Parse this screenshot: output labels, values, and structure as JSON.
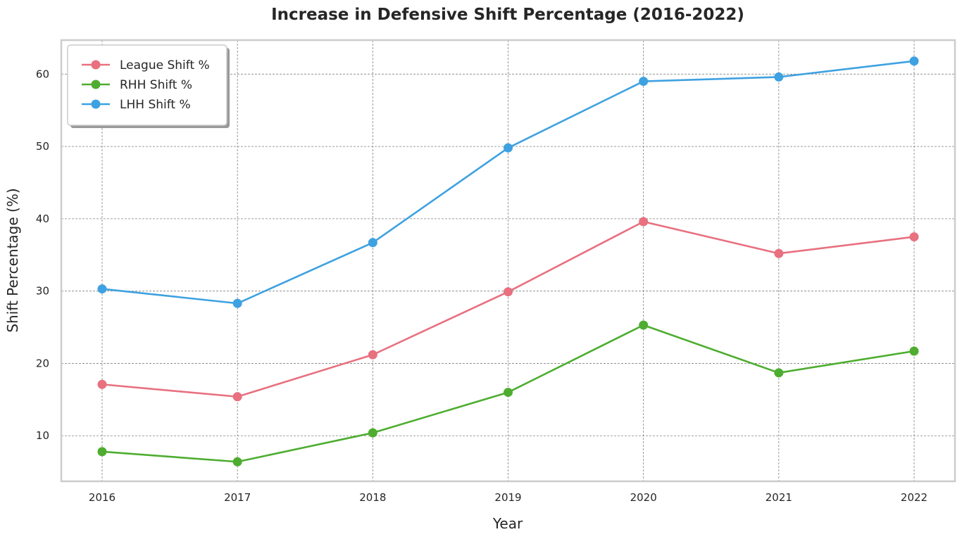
{
  "chart_data": {
    "type": "line",
    "title": "Increase in Defensive Shift Percentage (2016-2022)",
    "xlabel": "Year",
    "ylabel": "Shift Percentage (%)",
    "x": [
      "2016",
      "2017",
      "2018",
      "2019",
      "2020",
      "2021",
      "2022"
    ],
    "yticks": [
      "10",
      "20",
      "30",
      "40",
      "50",
      "60"
    ],
    "ylim": [
      3.7,
      64.7
    ],
    "grid": true,
    "legend_position": "top-left",
    "series": [
      {
        "name": "League Shift %",
        "color": "#e8707f",
        "values": [
          17.1,
          15.4,
          21.2,
          29.9,
          39.6,
          35.2,
          37.5
        ]
      },
      {
        "name": "RHH Shift %",
        "color": "#4ead30",
        "values": [
          7.8,
          6.4,
          10.4,
          16.0,
          25.3,
          18.7,
          21.7
        ]
      },
      {
        "name": "LHH Shift %",
        "color": "#3ea1e1",
        "values": [
          30.3,
          28.3,
          36.7,
          49.8,
          59.0,
          59.6,
          61.8
        ]
      }
    ]
  }
}
